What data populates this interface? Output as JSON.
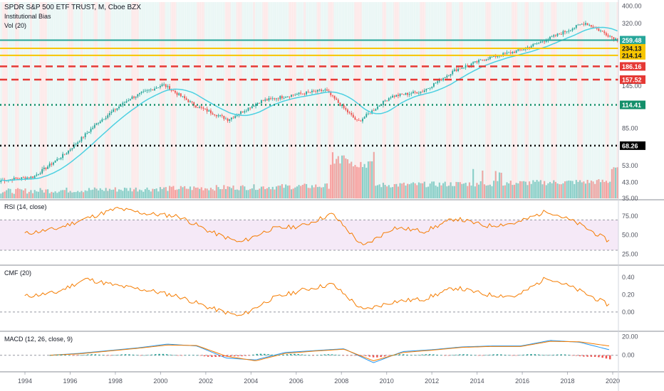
{
  "header": {
    "title": "SPDR S&P 500 ETF TRUST, M, Cboe BZX",
    "indicator1": "Institutional Bias",
    "indicator2": "Vol (20)"
  },
  "chart_data": [
    {
      "type": "candlestick",
      "title": "SPDR S&P 500 ETF TRUST, M, Cboe BZX",
      "yscale": "log",
      "ylim": [
        38,
        420
      ],
      "yticks": [
        "400.00",
        "320.00",
        "259.48",
        "234.13",
        "214.14",
        "186.16",
        "157.52",
        "145.00",
        "114.41",
        "85.00",
        "68.26",
        "53.00",
        "43.00",
        "35.00"
      ],
      "x": [
        "1993-01",
        "1994-06",
        "1996-01",
        "1997-06",
        "1999-01",
        "2000-06",
        "2002-01",
        "2003-06",
        "2005-01",
        "2006-06",
        "2008-01",
        "2009-06",
        "2011-01",
        "2012-06",
        "2014-01",
        "2015-06",
        "2017-01",
        "2018-06",
        "2020-01",
        "2020-03"
      ],
      "close": [
        44,
        46,
        62,
        92,
        125,
        148,
        113,
        95,
        120,
        130,
        138,
        92,
        127,
        136,
        178,
        207,
        228,
        270,
        324,
        260
      ],
      "ma_label": "Institutional Bias",
      "horizontal_levels": [
        {
          "value": 259.48,
          "label": "259.48",
          "color": "#26a69a",
          "style": "solid"
        },
        {
          "value": 234.13,
          "label": "234.13",
          "color": "#f7c600",
          "style": "solid"
        },
        {
          "value": 214.14,
          "label": "214.14",
          "color": "#f7c600",
          "style": "solid"
        },
        {
          "value": 186.16,
          "label": "186.16",
          "color": "#e53935",
          "style": "dashed"
        },
        {
          "value": 157.52,
          "label": "157.52",
          "color": "#e53935",
          "style": "dashed"
        },
        {
          "value": 114.41,
          "label": "114.41",
          "color": "#138f6a",
          "style": "dotted"
        },
        {
          "value": 68.26,
          "label": "68.26",
          "color": "#000000",
          "style": "dotted"
        }
      ],
      "volume": {
        "name": "Vol (20)"
      }
    },
    {
      "type": "line",
      "title": "RSI (14, close)",
      "yticks": [
        "75.00",
        "50.00",
        "25.00"
      ],
      "ylim": [
        15,
        90
      ],
      "band": [
        30,
        70
      ],
      "series": [
        {
          "values": [
            52,
            58,
            72,
            85,
            78,
            75,
            55,
            40,
            58,
            62,
            78,
            35,
            60,
            55,
            72,
            62,
            66,
            82,
            65,
            42
          ]
        }
      ]
    },
    {
      "type": "line",
      "title": "CMF (20)",
      "yticks": [
        "0.40",
        "0.20",
        "0.00"
      ],
      "ylim": [
        -0.18,
        0.48
      ],
      "series": [
        {
          "values": [
            0.18,
            0.22,
            0.38,
            0.3,
            0.25,
            0.18,
            0.05,
            -0.05,
            0.15,
            0.25,
            0.32,
            0.02,
            0.12,
            0.15,
            0.28,
            0.2,
            0.18,
            0.4,
            0.25,
            0.08
          ]
        }
      ]
    },
    {
      "type": "line",
      "title": "MACD (12, 26, close, 9)",
      "yticks": [
        "20.00",
        "0.00"
      ],
      "ylim": [
        -14,
        22
      ],
      "series": [
        {
          "values": [
            0,
            2,
            5,
            8,
            12,
            10,
            -3,
            -5,
            3,
            5,
            7,
            -8,
            4,
            6,
            9,
            10,
            10,
            16,
            14,
            6
          ]
        },
        {
          "values": [
            0,
            1.5,
            4.5,
            7.5,
            11,
            10.5,
            -1,
            -6,
            2,
            4.5,
            6.5,
            -6,
            3,
            5.5,
            8.5,
            9.5,
            9.5,
            15,
            14.5,
            10
          ]
        }
      ]
    }
  ],
  "xaxis": {
    "ticks": [
      "1994",
      "1996",
      "1998",
      "2000",
      "2002",
      "2004",
      "2006",
      "2008",
      "2010",
      "2012",
      "2014",
      "2016",
      "2018",
      "2020"
    ]
  }
}
